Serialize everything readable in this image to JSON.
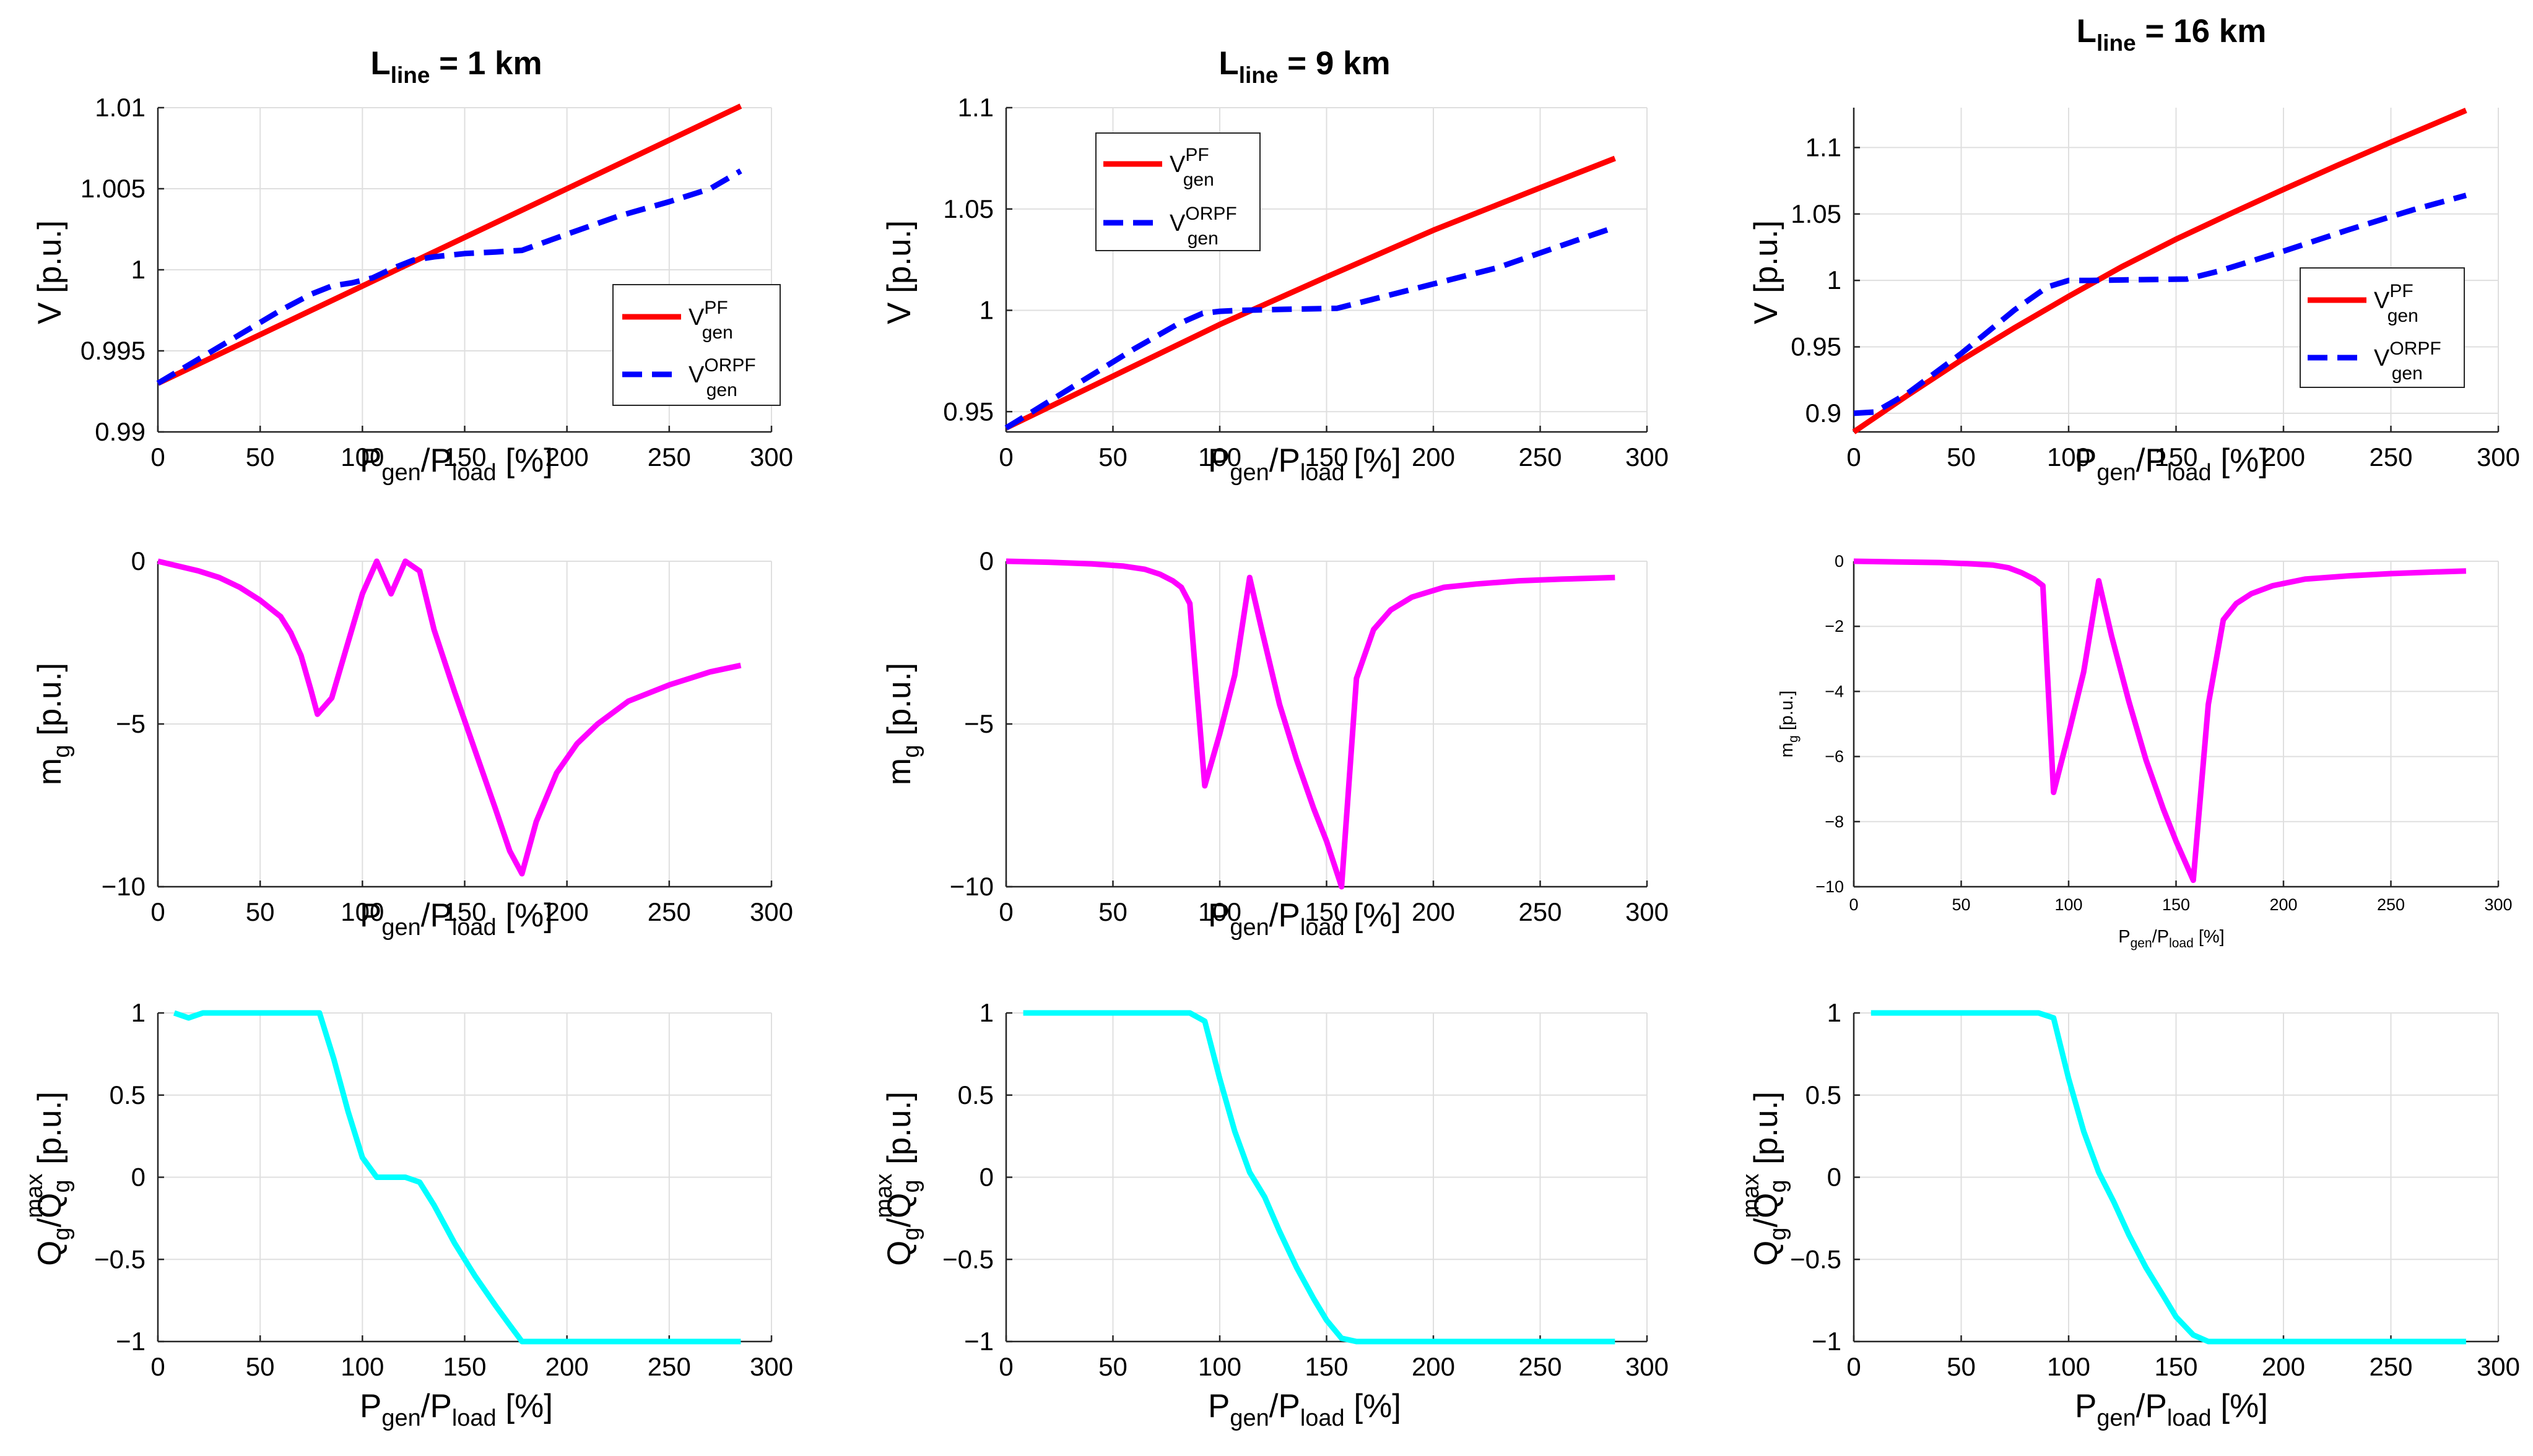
{
  "figure": {
    "columns": [
      {
        "title_main": "L",
        "title_sub": "line",
        "title_rest": " = 1 km"
      },
      {
        "title_main": "L",
        "title_sub": "line",
        "title_rest": " = 9 km"
      },
      {
        "title_main": "L",
        "title_sub": "line",
        "title_rest": " = 16 km"
      }
    ],
    "xlabel": {
      "p1": "P",
      "s1": "gen",
      "mid": "/P",
      "s2": "load",
      "end": " [%]"
    },
    "ylabels": {
      "voltage": {
        "main": "V [p.u.]"
      },
      "mg": {
        "main": "m",
        "sub": "g",
        "rest": " [p.u.]"
      },
      "q": {
        "q1": "Q",
        "s1": "g",
        "mid": "/Q",
        "s2": "g",
        "sup2": "max",
        "end": " [p.u.]"
      }
    },
    "legend": {
      "pf": {
        "base": "V",
        "sup": "PF",
        "sub": "gen"
      },
      "orpf": {
        "base": "V",
        "sup": "ORPF",
        "sub": "gen"
      }
    },
    "colors": {
      "pf": "#ff0000",
      "orpf": "#0000ff",
      "mg": "#ff00ff",
      "q": "#00ffff"
    }
  },
  "chart_data": [
    {
      "id": "v-1km",
      "type": "line",
      "row": 0,
      "col": 0,
      "title": "L_line = 1 km",
      "xlabel": "P_gen/P_load [%]",
      "ylabel": "V [p.u.]",
      "xlim": [
        0,
        300
      ],
      "ylim": [
        0.99,
        1.01
      ],
      "xticks": [
        0,
        50,
        100,
        150,
        200,
        250,
        300
      ],
      "xtick_labels": [
        "0",
        "50",
        "100",
        "150",
        "200",
        "250",
        "300"
      ],
      "yticks": [
        0.99,
        0.995,
        1,
        1.005,
        1.01
      ],
      "ytick_labels": [
        "0.99",
        "0.995",
        "1",
        "1.005",
        "1.01"
      ],
      "legend": "bottom-right",
      "series": [
        {
          "name": "V_gen^PF",
          "color": "#ff0000",
          "dash": "solid",
          "x": [
            0,
            285
          ],
          "y": [
            0.993,
            1.0101
          ]
        },
        {
          "name": "V_gen^ORPF",
          "color": "#0000ff",
          "dash": "dashed",
          "x": [
            0,
            20,
            40,
            60,
            75,
            85,
            95,
            105,
            115,
            125,
            135,
            150,
            165,
            178,
            200,
            225,
            250,
            270,
            285
          ],
          "y": [
            0.993,
            0.9945,
            0.996,
            0.9975,
            0.9985,
            0.999,
            0.9992,
            0.9995,
            1.0001,
            1.0006,
            1.0008,
            1.001,
            1.0011,
            1.0012,
            1.0022,
            1.0033,
            1.0042,
            1.005,
            1.0061
          ]
        }
      ]
    },
    {
      "id": "v-9km",
      "type": "line",
      "row": 0,
      "col": 1,
      "title": "L_line = 9 km",
      "xlabel": "P_gen/P_load [%]",
      "ylabel": "V [p.u.]",
      "xlim": [
        0,
        300
      ],
      "ylim": [
        0.94,
        1.1
      ],
      "xticks": [
        0,
        50,
        100,
        150,
        200,
        250,
        300
      ],
      "xtick_labels": [
        "0",
        "50",
        "100",
        "150",
        "200",
        "250",
        "300"
      ],
      "yticks": [
        0.95,
        1,
        1.05,
        1.1
      ],
      "ytick_labels": [
        "0.95",
        "1",
        "1.05",
        "1.1"
      ],
      "legend": "top-left",
      "series": [
        {
          "name": "V_gen^PF",
          "color": "#ff0000",
          "dash": "solid",
          "x": [
            0,
            50,
            100,
            150,
            200,
            250,
            285
          ],
          "y": [
            0.942,
            0.9675,
            0.993,
            1.0165,
            1.0395,
            1.0605,
            1.075
          ]
        },
        {
          "name": "V_gen^ORPF",
          "color": "#0000ff",
          "dash": "dashed",
          "x": [
            0,
            20,
            40,
            60,
            80,
            92,
            100,
            110,
            130,
            155,
            170,
            200,
            230,
            260,
            285
          ],
          "y": [
            0.942,
            0.955,
            0.968,
            0.981,
            0.993,
            0.9985,
            0.9995,
            1.0,
            1.0005,
            1.001,
            1.005,
            1.013,
            1.021,
            1.032,
            1.041
          ]
        }
      ]
    },
    {
      "id": "v-16km",
      "type": "line",
      "row": 0,
      "col": 2,
      "title": "L_line = 16 km",
      "xlabel": "P_gen/P_load [%]",
      "ylabel": "V [p.u.]",
      "xlim": [
        0,
        300
      ],
      "ylim": [
        0.886,
        1.13
      ],
      "xticks": [
        0,
        50,
        100,
        150,
        200,
        250,
        300
      ],
      "xtick_labels": [
        "0",
        "50",
        "100",
        "150",
        "200",
        "250",
        "300"
      ],
      "yticks": [
        0.9,
        0.95,
        1,
        1.05,
        1.1
      ],
      "ytick_labels": [
        "0.9",
        "0.95",
        "1",
        "1.05",
        "1.1"
      ],
      "legend": "right",
      "series": [
        {
          "name": "V_gen^PF",
          "color": "#ff0000",
          "dash": "solid",
          "x": [
            0,
            25,
            50,
            75,
            100,
            125,
            150,
            175,
            200,
            225,
            250,
            285
          ],
          "y": [
            0.886,
            0.9135,
            0.94,
            0.9645,
            0.988,
            1.0105,
            1.031,
            1.05,
            1.0685,
            1.0865,
            1.104,
            1.128
          ]
        },
        {
          "name": "V_gen^ORPF",
          "color": "#0000ff",
          "dash": "dashed",
          "x": [
            0,
            10,
            25,
            50,
            75,
            90,
            100,
            110,
            130,
            155,
            170,
            200,
            230,
            260,
            285
          ],
          "y": [
            0.9,
            0.901,
            0.915,
            0.945,
            0.978,
            0.995,
            1.0,
            1.0,
            1.0005,
            1.001,
            1.007,
            1.022,
            1.038,
            1.053,
            1.064
          ]
        }
      ]
    },
    {
      "id": "mg-1km",
      "type": "line",
      "row": 1,
      "col": 0,
      "xlabel": "P_gen/P_load [%]",
      "ylabel": "m_g [p.u.]",
      "xlim": [
        0,
        300
      ],
      "ylim": [
        -10,
        0
      ],
      "xticks": [
        0,
        50,
        100,
        150,
        200,
        250,
        300
      ],
      "xtick_labels": [
        "0",
        "50",
        "100",
        "150",
        "200",
        "250",
        "300"
      ],
      "yticks": [
        -10,
        -5,
        0
      ],
      "ytick_labels": [
        "−10",
        "−5",
        "0"
      ],
      "series": [
        {
          "name": "m_g",
          "color": "#ff00ff",
          "dash": "solid",
          "x": [
            0,
            10,
            20,
            30,
            40,
            50,
            60,
            65,
            70,
            75,
            78,
            85,
            92,
            100,
            107,
            114,
            121,
            128,
            135,
            145,
            155,
            165,
            172,
            178,
            185,
            195,
            205,
            215,
            230,
            250,
            270,
            285
          ],
          "y": [
            0,
            -0.15,
            -0.3,
            -0.5,
            -0.8,
            -1.2,
            -1.7,
            -2.2,
            -2.9,
            -4.0,
            -4.7,
            -4.2,
            -2.7,
            -1.0,
            0,
            -1.0,
            0,
            -0.3,
            -2.1,
            -4.0,
            -5.8,
            -7.6,
            -8.9,
            -9.6,
            -8.0,
            -6.5,
            -5.6,
            -5.0,
            -4.3,
            -3.8,
            -3.4,
            -3.2
          ]
        }
      ]
    },
    {
      "id": "mg-9km",
      "type": "line",
      "row": 1,
      "col": 1,
      "xlabel": "P_gen/P_load [%]",
      "ylabel": "m_g [p.u.]",
      "xlim": [
        0,
        300
      ],
      "ylim": [
        -10,
        0
      ],
      "xticks": [
        0,
        50,
        100,
        150,
        200,
        250,
        300
      ],
      "xtick_labels": [
        "0",
        "50",
        "100",
        "150",
        "200",
        "250",
        "300"
      ],
      "yticks": [
        -10,
        -5,
        0
      ],
      "ytick_labels": [
        "−10",
        "−5",
        "0"
      ],
      "series": [
        {
          "name": "m_g",
          "color": "#ff00ff",
          "dash": "solid",
          "x": [
            0,
            20,
            40,
            55,
            65,
            72,
            78,
            82,
            86,
            93,
            100,
            107,
            114,
            120,
            128,
            136,
            144,
            150,
            157,
            164,
            172,
            180,
            190,
            205,
            220,
            240,
            260,
            285
          ],
          "y": [
            0,
            -0.03,
            -0.08,
            -0.15,
            -0.25,
            -0.4,
            -0.6,
            -0.8,
            -1.3,
            -6.9,
            -5.3,
            -3.5,
            -0.5,
            -2.2,
            -4.4,
            -6.1,
            -7.6,
            -8.6,
            -10.0,
            -3.6,
            -2.1,
            -1.5,
            -1.1,
            -0.8,
            -0.7,
            -0.6,
            -0.55,
            -0.5
          ]
        }
      ]
    },
    {
      "id": "mg-16km",
      "type": "line",
      "row": 1,
      "col": 2,
      "xlabel": "P_gen/P_load [%]",
      "ylabel": "m_g [p.u.]",
      "xlim": [
        0,
        300
      ],
      "ylim": [
        -10,
        0
      ],
      "xticks": [
        0,
        50,
        100,
        150,
        200,
        250,
        300
      ],
      "xtick_labels": [
        "0",
        "50",
        "100",
        "150",
        "200",
        "250",
        "300"
      ],
      "yticks": [
        -10,
        -8,
        -6,
        -4,
        -2,
        0
      ],
      "ytick_labels": [
        "−10",
        "−8",
        "−6",
        "−4",
        "−2",
        "0"
      ],
      "series": [
        {
          "name": "m_g",
          "color": "#ff00ff",
          "dash": "solid",
          "x": [
            0,
            20,
            40,
            55,
            65,
            72,
            78,
            84,
            88,
            93,
            100,
            107,
            114,
            120,
            128,
            136,
            144,
            150,
            158,
            165,
            172,
            178,
            185,
            195,
            210,
            230,
            250,
            270,
            285
          ],
          "y": [
            0,
            -0.02,
            -0.04,
            -0.08,
            -0.12,
            -0.2,
            -0.35,
            -0.55,
            -0.75,
            -7.1,
            -5.3,
            -3.4,
            -0.6,
            -2.3,
            -4.3,
            -6.1,
            -7.6,
            -8.6,
            -9.8,
            -4.4,
            -1.8,
            -1.3,
            -1.0,
            -0.75,
            -0.55,
            -0.45,
            -0.38,
            -0.33,
            -0.3
          ]
        }
      ]
    },
    {
      "id": "q-1km",
      "type": "line",
      "row": 2,
      "col": 0,
      "xlabel": "P_gen/P_load [%]",
      "ylabel": "Q_g/Q_g^max [p.u.]",
      "xlim": [
        0,
        300
      ],
      "ylim": [
        -1,
        1
      ],
      "xticks": [
        0,
        50,
        100,
        150,
        200,
        250,
        300
      ],
      "xtick_labels": [
        "0",
        "50",
        "100",
        "150",
        "200",
        "250",
        "300"
      ],
      "yticks": [
        -1,
        -0.5,
        0,
        0.5,
        1
      ],
      "ytick_labels": [
        "−1",
        "−0.5",
        "0",
        "0.5",
        "1"
      ],
      "series": [
        {
          "name": "Q_g/Q_g^max",
          "color": "#00ffff",
          "dash": "solid",
          "x": [
            8,
            15,
            22,
            30,
            50,
            70,
            79,
            86,
            93,
            100,
            107,
            114,
            121,
            128,
            135,
            145,
            155,
            165,
            172,
            178,
            200,
            250,
            285
          ],
          "y": [
            1,
            0.97,
            1,
            1,
            1,
            1,
            1,
            0.72,
            0.4,
            0.12,
            0,
            0,
            0,
            -0.03,
            -0.17,
            -0.4,
            -0.6,
            -0.78,
            -0.9,
            -1,
            -1,
            -1,
            -1
          ]
        }
      ]
    },
    {
      "id": "q-9km",
      "type": "line",
      "row": 2,
      "col": 1,
      "xlabel": "P_gen/P_load [%]",
      "ylabel": "Q_g/Q_g^max [p.u.]",
      "xlim": [
        0,
        300
      ],
      "ylim": [
        -1,
        1
      ],
      "xticks": [
        0,
        50,
        100,
        150,
        200,
        250,
        300
      ],
      "xtick_labels": [
        "0",
        "50",
        "100",
        "150",
        "200",
        "250",
        "300"
      ],
      "yticks": [
        -1,
        -0.5,
        0,
        0.5,
        1
      ],
      "ytick_labels": [
        "−1",
        "−0.5",
        "0",
        "0.5",
        "1"
      ],
      "series": [
        {
          "name": "Q_g/Q_g^max",
          "color": "#00ffff",
          "dash": "solid",
          "x": [
            8,
            30,
            50,
            70,
            86,
            93,
            100,
            107,
            114,
            121,
            128,
            136,
            144,
            150,
            157,
            164,
            200,
            250,
            285
          ],
          "y": [
            1,
            1,
            1,
            1,
            1,
            0.95,
            0.6,
            0.28,
            0.03,
            -0.12,
            -0.33,
            -0.55,
            -0.74,
            -0.87,
            -0.98,
            -1,
            -1,
            -1,
            -1
          ]
        }
      ]
    },
    {
      "id": "q-16km",
      "type": "line",
      "row": 2,
      "col": 2,
      "xlabel": "P_gen/P_load [%]",
      "ylabel": "Q_g/Q_g^max [p.u.]",
      "xlim": [
        0,
        300
      ],
      "ylim": [
        -1,
        1
      ],
      "xticks": [
        0,
        50,
        100,
        150,
        200,
        250,
        300
      ],
      "xtick_labels": [
        "0",
        "50",
        "100",
        "150",
        "200",
        "250",
        "300"
      ],
      "yticks": [
        -1,
        -0.5,
        0,
        0.5,
        1
      ],
      "ytick_labels": [
        "−1",
        "−0.5",
        "0",
        "0.5",
        "1"
      ],
      "series": [
        {
          "name": "Q_g/Q_g^max",
          "color": "#00ffff",
          "dash": "solid",
          "x": [
            8,
            30,
            50,
            70,
            86,
            93,
            100,
            107,
            114,
            121,
            128,
            136,
            144,
            150,
            158,
            165,
            200,
            250,
            285
          ],
          "y": [
            1,
            1,
            1,
            1,
            1,
            0.97,
            0.6,
            0.28,
            0.03,
            -0.15,
            -0.35,
            -0.55,
            -0.72,
            -0.85,
            -0.96,
            -1,
            -1,
            -1,
            -1
          ]
        }
      ]
    }
  ]
}
